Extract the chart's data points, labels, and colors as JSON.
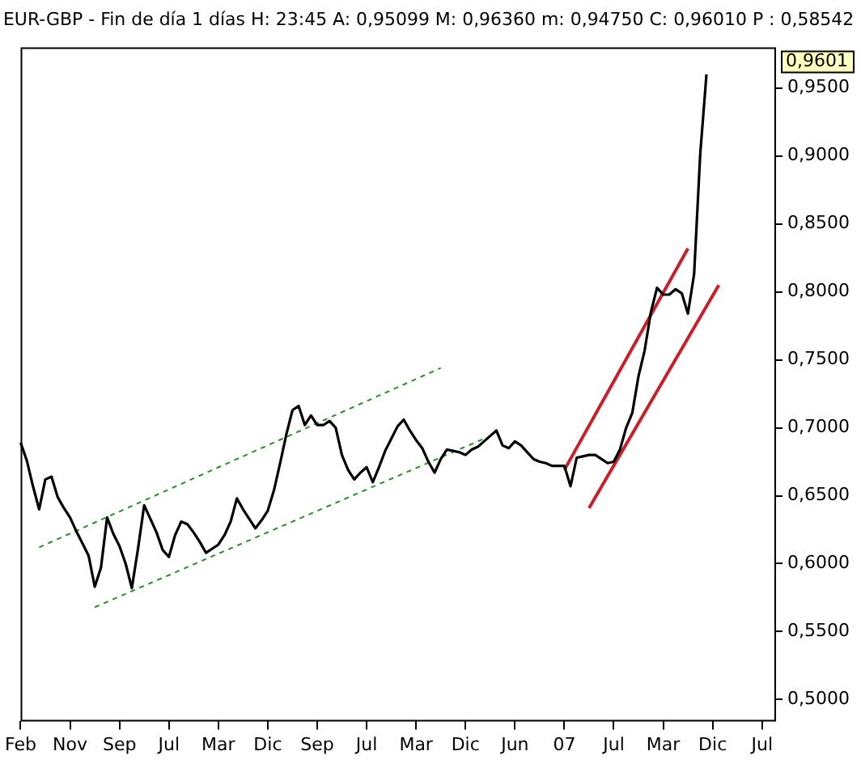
{
  "chart_data": {
    "type": "line",
    "title": "EUR-GBP - Fin de día 1 días H: 23:45 A: 0,95099 M: 0,96360 m: 0,94750 C: 0,96010 P : 0,58542",
    "categories": [
      "Feb",
      null,
      null,
      null,
      null,
      null,
      null,
      null,
      "Nov",
      null,
      null,
      null,
      null,
      null,
      null,
      null,
      "Sep",
      null,
      null,
      null,
      null,
      null,
      null,
      null,
      "Jul",
      null,
      null,
      null,
      null,
      null,
      null,
      null,
      "Mar",
      null,
      null,
      null,
      null,
      null,
      null,
      null,
      "Dic",
      null,
      null,
      null,
      null,
      null,
      null,
      null,
      "Sep",
      null,
      null,
      null,
      null,
      null,
      null,
      null,
      "Jul",
      null,
      null,
      null,
      null,
      null,
      null,
      null,
      "Mar",
      null,
      null,
      null,
      null,
      null,
      null,
      null,
      "Dic",
      null,
      null,
      null,
      null,
      null,
      null,
      null,
      "Jun",
      null,
      null,
      null,
      null,
      null,
      null,
      null,
      "07",
      null,
      null,
      null,
      null,
      null,
      null,
      null,
      "Jul",
      null,
      null,
      null,
      null,
      null,
      null,
      null,
      "Mar",
      null,
      null,
      null,
      null,
      null,
      null,
      null,
      "Dic",
      null,
      null,
      null,
      null,
      null,
      null,
      null,
      "Jul",
      null,
      null
    ],
    "series": [
      {
        "type": "line",
        "color": "#000000",
        "line_style": "solid",
        "values": [
          0.689,
          0.676,
          0.657,
          0.64,
          0.662,
          0.664,
          0.649,
          0.641,
          0.634,
          0.624,
          0.615,
          0.606,
          0.583,
          0.597,
          0.634,
          0.622,
          0.613,
          0.6,
          0.582,
          0.611,
          0.643,
          0.633,
          0.623,
          0.61,
          0.605,
          0.621,
          0.631,
          0.629,
          0.623,
          0.616,
          0.608,
          0.611,
          0.614,
          0.621,
          0.631,
          0.648,
          0.64,
          0.633,
          0.626,
          0.632,
          0.639,
          0.654,
          0.674,
          0.695,
          0.713,
          0.716,
          0.702,
          0.709,
          0.702,
          0.702,
          0.705,
          0.7,
          0.68,
          0.669,
          0.662,
          0.667,
          0.671,
          0.66,
          0.671,
          0.683,
          0.692,
          0.701,
          0.706,
          0.698,
          0.691,
          0.685,
          0.675,
          0.667,
          0.677,
          0.684,
          0.683,
          0.682,
          0.68,
          0.684,
          0.686,
          0.69,
          0.694,
          0.698,
          0.687,
          0.685,
          0.69,
          0.687,
          0.682,
          0.677,
          0.675,
          0.674,
          0.672,
          0.672,
          0.672,
          0.657,
          0.678,
          0.679,
          0.68,
          0.68,
          0.677,
          0.674,
          0.675,
          0.684,
          0.7,
          0.711,
          0.738,
          0.757,
          0.785,
          0.803,
          0.798,
          0.798,
          0.802,
          0.799,
          0.784,
          0.813,
          0.902,
          0.96,
          null,
          null,
          null,
          null,
          null,
          null,
          null,
          null,
          null,
          null,
          null
        ]
      },
      {
        "type": "line",
        "color": "#2e8b2e",
        "line_style": "dashed",
        "values": [
          null,
          null,
          null,
          0.612,
          null,
          null,
          null,
          null,
          null,
          null,
          null,
          null,
          null,
          null,
          null,
          null,
          null,
          null,
          null,
          null,
          null,
          null,
          null,
          null,
          null,
          null,
          null,
          null,
          null,
          null,
          null,
          null,
          null,
          null,
          null,
          null,
          null,
          null,
          null,
          null,
          null,
          null,
          null,
          null,
          null,
          null,
          null,
          null,
          null,
          null,
          null,
          null,
          null,
          null,
          null,
          null,
          null,
          null,
          null,
          null,
          null,
          null,
          null,
          null,
          null,
          null,
          null,
          null,
          0.744,
          null,
          null,
          null,
          null,
          null,
          null,
          null,
          null,
          null,
          null,
          null,
          null,
          null,
          null,
          null,
          null,
          null,
          null,
          null,
          null,
          null,
          null,
          null,
          null,
          null,
          null,
          null,
          null,
          null,
          null,
          null,
          null,
          null,
          null,
          null,
          null,
          null,
          null,
          null,
          null,
          null,
          null,
          null,
          null,
          null,
          null,
          null,
          null,
          null,
          null,
          null,
          null,
          null,
          null
        ]
      },
      {
        "type": "line",
        "color": "#2e8b2e",
        "line_style": "dashed",
        "values": [
          null,
          null,
          null,
          null,
          null,
          null,
          null,
          null,
          null,
          null,
          null,
          null,
          0.568,
          null,
          null,
          null,
          null,
          null,
          null,
          null,
          null,
          null,
          null,
          null,
          null,
          null,
          null,
          null,
          null,
          null,
          null,
          null,
          null,
          null,
          null,
          null,
          null,
          null,
          null,
          null,
          null,
          null,
          null,
          null,
          null,
          null,
          null,
          null,
          null,
          null,
          null,
          null,
          null,
          null,
          null,
          null,
          null,
          null,
          null,
          null,
          null,
          null,
          null,
          null,
          null,
          null,
          null,
          null,
          null,
          null,
          null,
          null,
          null,
          null,
          null,
          0.692,
          null,
          null,
          null,
          null,
          null,
          null,
          null,
          null,
          null,
          null,
          null,
          null,
          null,
          null,
          null,
          null,
          null,
          null,
          null,
          null,
          null,
          null,
          null,
          null,
          null,
          null,
          null,
          null,
          null,
          null,
          null,
          null,
          null,
          null,
          null,
          null,
          null,
          null,
          null,
          null,
          null,
          null,
          null,
          null,
          null,
          null,
          null
        ]
      },
      {
        "type": "line",
        "color": "#c8202a",
        "line_style": "solid",
        "values": [
          null,
          null,
          null,
          null,
          null,
          null,
          null,
          null,
          null,
          null,
          null,
          null,
          null,
          null,
          null,
          null,
          null,
          null,
          null,
          null,
          null,
          null,
          null,
          null,
          null,
          null,
          null,
          null,
          null,
          null,
          null,
          null,
          null,
          null,
          null,
          null,
          null,
          null,
          null,
          null,
          null,
          null,
          null,
          null,
          null,
          null,
          null,
          null,
          null,
          null,
          null,
          null,
          null,
          null,
          null,
          null,
          null,
          null,
          null,
          null,
          null,
          null,
          null,
          null,
          null,
          null,
          null,
          null,
          null,
          null,
          null,
          null,
          null,
          null,
          null,
          null,
          null,
          null,
          null,
          null,
          null,
          null,
          null,
          null,
          null,
          null,
          null,
          null,
          0.669,
          null,
          null,
          null,
          null,
          null,
          null,
          null,
          null,
          null,
          null,
          null,
          null,
          null,
          null,
          null,
          null,
          null,
          null,
          null,
          0.832,
          null,
          null,
          null,
          null,
          null,
          null,
          null,
          null,
          null,
          null,
          null,
          null,
          null,
          null
        ]
      },
      {
        "type": "line",
        "color": "#c8202a",
        "line_style": "solid",
        "values": [
          null,
          null,
          null,
          null,
          null,
          null,
          null,
          null,
          null,
          null,
          null,
          null,
          null,
          null,
          null,
          null,
          null,
          null,
          null,
          null,
          null,
          null,
          null,
          null,
          null,
          null,
          null,
          null,
          null,
          null,
          null,
          null,
          null,
          null,
          null,
          null,
          null,
          null,
          null,
          null,
          null,
          null,
          null,
          null,
          null,
          null,
          null,
          null,
          null,
          null,
          null,
          null,
          null,
          null,
          null,
          null,
          null,
          null,
          null,
          null,
          null,
          null,
          null,
          null,
          null,
          null,
          null,
          null,
          null,
          null,
          null,
          null,
          null,
          null,
          null,
          null,
          null,
          null,
          null,
          null,
          null,
          null,
          null,
          null,
          null,
          null,
          null,
          null,
          null,
          null,
          null,
          null,
          0.641,
          null,
          null,
          null,
          null,
          null,
          null,
          null,
          null,
          null,
          null,
          null,
          null,
          null,
          null,
          null,
          null,
          null,
          null,
          null,
          null,
          0.805,
          null,
          null,
          null,
          null,
          null,
          null,
          null,
          null,
          null
        ]
      }
    ],
    "ylim": [
      0.485,
      0.98
    ],
    "yticks": [
      {
        "value": 0.5,
        "label": "0,5000"
      },
      {
        "value": 0.55,
        "label": "0,5500"
      },
      {
        "value": 0.6,
        "label": "0,6000"
      },
      {
        "value": 0.65,
        "label": "0,6500"
      },
      {
        "value": 0.7,
        "label": "0,7000"
      },
      {
        "value": 0.75,
        "label": "0,7500"
      },
      {
        "value": 0.8,
        "label": "0,8000"
      },
      {
        "value": 0.85,
        "label": "0,8500"
      },
      {
        "value": 0.9,
        "label": "0,9000"
      },
      {
        "value": 0.95,
        "label": "0,9500"
      }
    ],
    "annotations": [
      "0,9601"
    ],
    "grid": false,
    "legend": false,
    "marker": "none"
  }
}
